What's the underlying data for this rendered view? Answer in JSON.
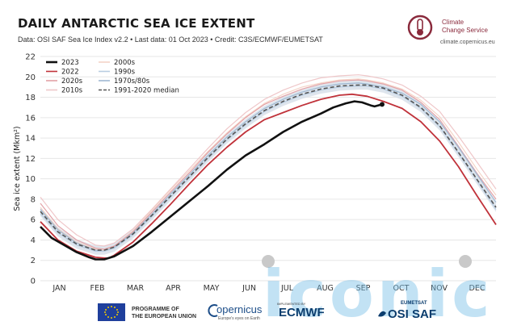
{
  "header": {
    "title": "DAILY ANTARCTIC SEA ICE EXTENT",
    "subtitle": "Data: OSI SAF Sea Ice Index v2.2 • Last data: 01 Oct 2023 • Credit: C3S/ECMWF/EUMETSAT"
  },
  "branding": {
    "c3s_line1": "Climate",
    "c3s_line2": "Change Service",
    "c3s_url": "climate.copernicus.eu",
    "programme_line1": "PROGRAMME OF",
    "programme_line2": "THE EUROPEAN UNION",
    "copernicus": "opernicus",
    "copernicus_sub": "Europe's eyes on Earth",
    "ecmwf_small": "IMPLEMENTED BY",
    "ecmwf": "ECMWF",
    "eumetsat": "EUMETSAT",
    "osisaf": "OSI SAF",
    "watermark": "iconic"
  },
  "colors": {
    "y2023": "#111111",
    "y2022": "#c0323a",
    "y2020s": "#e3a2a7",
    "y2010s": "#efc7c9",
    "y2000s": "#f4d4c7",
    "y1990s": "#b8cde2",
    "y1970s80s": "#9fb8d2",
    "median": "#555555",
    "band": "#d6dee8"
  },
  "chart_data": {
    "type": "line",
    "title": "DAILY ANTARCTIC SEA ICE EXTENT",
    "xlabel": "",
    "ylabel": "Sea ice extent (Mkm²)",
    "ylim": [
      0,
      22
    ],
    "yticks": [
      0,
      2,
      4,
      6,
      8,
      10,
      12,
      14,
      16,
      18,
      20,
      22
    ],
    "months": [
      "JAN",
      "FEB",
      "MAR",
      "APR",
      "MAY",
      "JUN",
      "JUL",
      "AUG",
      "SEP",
      "OCT",
      "NOV",
      "DEC"
    ],
    "grid": true,
    "legend_position": "top-left",
    "legend": [
      {
        "label": "2023",
        "key": "y2023",
        "style": "solid-thick"
      },
      {
        "label": "2022",
        "key": "y2022",
        "style": "solid"
      },
      {
        "label": "2020s",
        "key": "y2020s",
        "style": "solid"
      },
      {
        "label": "2010s",
        "key": "y2010s",
        "style": "solid"
      },
      {
        "label": "2000s",
        "key": "y2000s",
        "style": "solid"
      },
      {
        "label": "1990s",
        "key": "y1990s",
        "style": "solid"
      },
      {
        "label": "1970s/80s",
        "key": "y1970s80s",
        "style": "solid"
      },
      {
        "label": "1991-2020 median",
        "key": "median",
        "style": "dashed"
      }
    ],
    "series": [
      {
        "name": "1991-2020 median",
        "key": "median",
        "x": [
          1,
          15,
          30,
          45,
          52,
          60,
          75,
          90,
          105,
          120,
          135,
          150,
          165,
          180,
          195,
          210,
          225,
          240,
          255,
          262,
          275,
          290,
          305,
          320,
          335,
          350,
          365
        ],
        "y": [
          6.8,
          4.8,
          3.6,
          3.0,
          3.0,
          3.3,
          4.6,
          6.4,
          8.3,
          10.2,
          12.1,
          13.9,
          15.4,
          16.7,
          17.6,
          18.3,
          18.8,
          19.1,
          19.2,
          19.2,
          18.9,
          18.2,
          17.0,
          15.2,
          12.6,
          9.9,
          7.2
        ]
      },
      {
        "name": "2022",
        "key": "y2022",
        "x": [
          1,
          15,
          30,
          45,
          55,
          60,
          75,
          90,
          105,
          120,
          135,
          150,
          165,
          180,
          195,
          210,
          225,
          240,
          250,
          262,
          275,
          290,
          305,
          320,
          335,
          350,
          365
        ],
        "y": [
          5.8,
          4.0,
          2.9,
          2.3,
          2.2,
          2.5,
          3.8,
          5.6,
          7.5,
          9.5,
          11.4,
          13.1,
          14.6,
          15.8,
          16.5,
          17.2,
          17.8,
          18.2,
          18.3,
          18.1,
          17.6,
          16.9,
          15.6,
          13.7,
          11.2,
          8.3,
          5.5
        ]
      },
      {
        "name": "2023",
        "key": "y2023",
        "x": [
          1,
          10,
          20,
          30,
          40,
          45,
          52,
          60,
          75,
          90,
          105,
          120,
          135,
          150,
          165,
          180,
          195,
          210,
          225,
          235,
          245,
          252,
          258,
          265,
          268,
          274
        ],
        "y": [
          5.3,
          4.2,
          3.5,
          2.8,
          2.3,
          2.1,
          2.1,
          2.4,
          3.4,
          4.8,
          6.3,
          7.8,
          9.3,
          10.9,
          12.3,
          13.4,
          14.6,
          15.6,
          16.4,
          17.0,
          17.4,
          17.6,
          17.5,
          17.2,
          17.1,
          17.3
        ]
      },
      {
        "name": "2020s",
        "key": "y2020s",
        "x": [
          1,
          15,
          30,
          45,
          52,
          60,
          75,
          90,
          105,
          120,
          135,
          150,
          165,
          180,
          195,
          210,
          225,
          240,
          255,
          262,
          275,
          290,
          305,
          320,
          335,
          350,
          365
        ],
        "y": [
          7.6,
          5.4,
          4.0,
          3.2,
          3.1,
          3.4,
          4.8,
          6.7,
          8.7,
          10.6,
          12.6,
          14.4,
          16.0,
          17.3,
          18.1,
          18.8,
          19.3,
          19.6,
          19.7,
          19.6,
          19.3,
          18.7,
          17.5,
          15.8,
          13.2,
          10.5,
          8.0
        ]
      },
      {
        "name": "2010s",
        "key": "y2010s",
        "x": [
          1,
          15,
          30,
          45,
          52,
          60,
          75,
          90,
          105,
          120,
          135,
          150,
          165,
          180,
          195,
          210,
          225,
          240,
          255,
          262,
          275,
          290,
          305,
          320,
          335,
          350,
          365
        ],
        "y": [
          8.2,
          6.0,
          4.5,
          3.5,
          3.4,
          3.7,
          5.1,
          7.0,
          9.0,
          11.0,
          13.0,
          14.9,
          16.5,
          17.8,
          18.7,
          19.4,
          19.9,
          20.1,
          20.2,
          20.1,
          19.8,
          19.2,
          18.1,
          16.6,
          14.2,
          11.6,
          9.0
        ]
      },
      {
        "name": "2000s",
        "key": "y2000s",
        "x": [
          1,
          15,
          30,
          45,
          52,
          60,
          75,
          90,
          105,
          120,
          135,
          150,
          165,
          180,
          195,
          210,
          225,
          240,
          255,
          262,
          275,
          290,
          305,
          320,
          335,
          350,
          365
        ],
        "y": [
          7.2,
          5.1,
          3.8,
          3.1,
          3.0,
          3.4,
          4.9,
          6.9,
          8.9,
          10.8,
          12.7,
          14.5,
          16.1,
          17.4,
          18.3,
          19.0,
          19.4,
          19.7,
          19.8,
          19.7,
          19.4,
          18.8,
          17.7,
          16.1,
          13.6,
          10.9,
          8.4
        ]
      },
      {
        "name": "1990s",
        "key": "y1990s",
        "x": [
          1,
          15,
          30,
          45,
          52,
          60,
          75,
          90,
          105,
          120,
          135,
          150,
          165,
          180,
          195,
          210,
          225,
          240,
          255,
          262,
          275,
          290,
          305,
          320,
          335,
          350,
          365
        ],
        "y": [
          6.6,
          4.7,
          3.5,
          2.9,
          2.9,
          3.2,
          4.5,
          6.3,
          8.2,
          10.1,
          12.0,
          13.8,
          15.3,
          16.6,
          17.5,
          18.2,
          18.7,
          19.0,
          19.1,
          19.1,
          18.8,
          18.1,
          16.9,
          15.1,
          12.5,
          9.8,
          7.0
        ]
      },
      {
        "name": "1970s/80s",
        "key": "y1970s80s",
        "x": [
          1,
          15,
          30,
          45,
          52,
          60,
          75,
          90,
          105,
          120,
          135,
          150,
          165,
          180,
          195,
          210,
          225,
          240,
          255,
          262,
          275,
          290,
          305,
          320,
          335,
          350,
          365
        ],
        "y": [
          7.0,
          5.0,
          3.7,
          3.0,
          2.9,
          3.3,
          4.7,
          6.5,
          8.5,
          10.4,
          12.3,
          14.1,
          15.6,
          16.9,
          17.8,
          18.5,
          19.0,
          19.3,
          19.4,
          19.3,
          19.0,
          18.4,
          17.3,
          15.6,
          13.1,
          10.4,
          7.7
        ]
      }
    ]
  }
}
